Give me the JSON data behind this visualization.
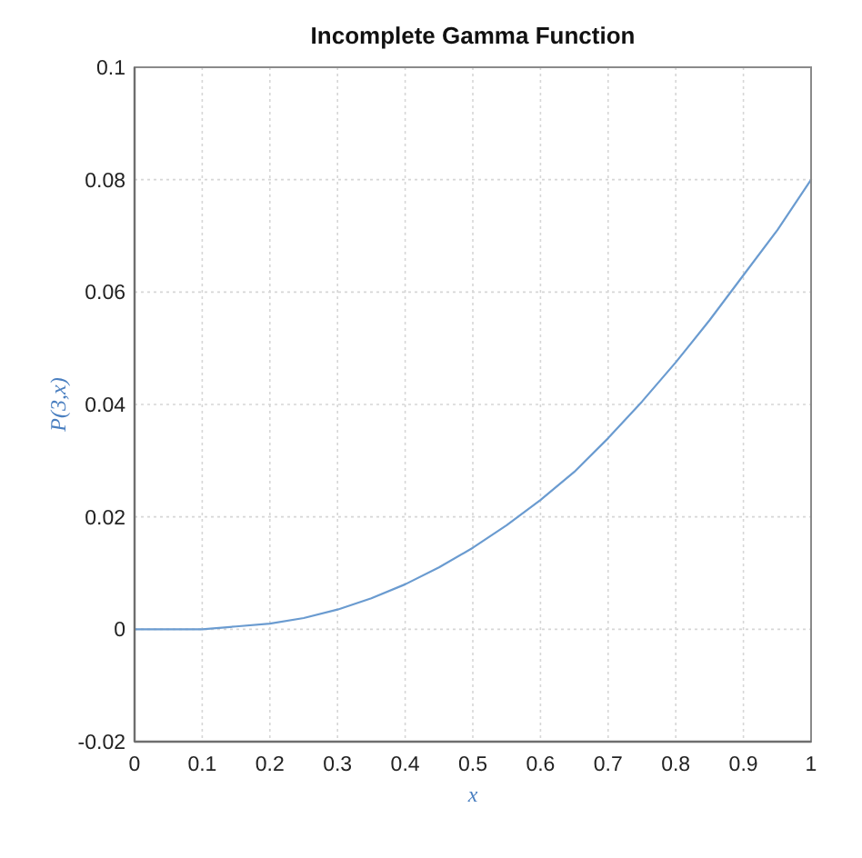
{
  "chart_data": {
    "type": "line",
    "title": "Incomplete Gamma Function",
    "xlabel": "x",
    "ylabel": "P(3,x)",
    "x": [
      0,
      0.05,
      0.1,
      0.15,
      0.2,
      0.25,
      0.3,
      0.35,
      0.4,
      0.45,
      0.5,
      0.55,
      0.6,
      0.65,
      0.7,
      0.75,
      0.8,
      0.85,
      0.9,
      0.95,
      1
    ],
    "series": [
      {
        "color": "#6a9bd0",
        "values": [
          0,
          0,
          0,
          0.0005,
          0.001,
          0.002,
          0.0035,
          0.0055,
          0.008,
          0.011,
          0.0145,
          0.0185,
          0.023,
          0.028,
          0.034,
          0.0405,
          0.0475,
          0.055,
          0.063,
          0.071,
          0.08
        ]
      }
    ],
    "xlim": [
      0,
      1
    ],
    "ylim": [
      -0.02,
      0.1
    ],
    "xticks": [
      0,
      0.1,
      0.2,
      0.3,
      0.4,
      0.5,
      0.6,
      0.7,
      0.8,
      0.9,
      1
    ],
    "yticks": [
      -0.02,
      0,
      0.02,
      0.04,
      0.06,
      0.08,
      0.1
    ],
    "grid": true
  }
}
